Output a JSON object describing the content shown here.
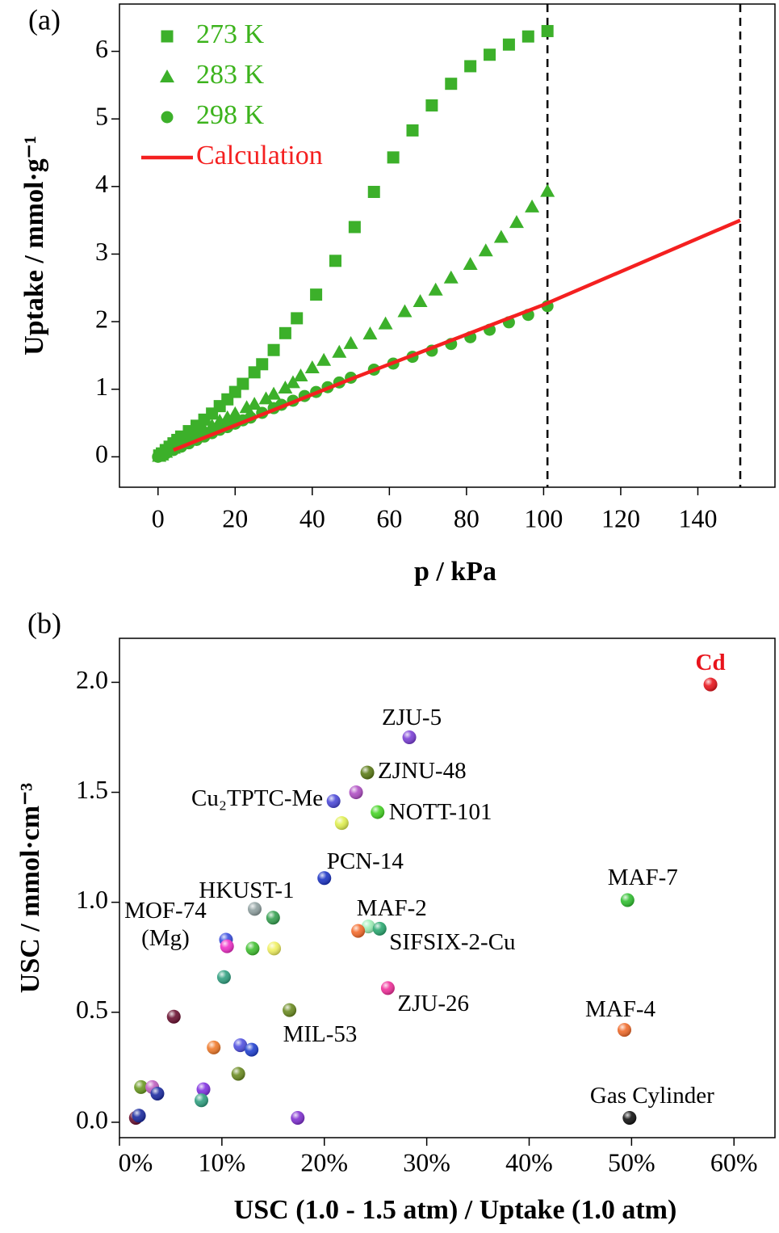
{
  "chart_data": [
    {
      "type": "scatter",
      "panel_label": "(a)",
      "x_label": "p / kPa",
      "y_label": "Uptake / mmol·g⁻¹",
      "xlim": [
        -10,
        160
      ],
      "xticks": [
        0,
        20,
        40,
        60,
        80,
        100,
        120,
        140
      ],
      "ylim": [
        -0.45,
        6.7
      ],
      "yticks": [
        0,
        1,
        2,
        3,
        4,
        5,
        6
      ],
      "vlines": [
        101,
        151
      ],
      "legend": "top-left",
      "series": [
        {
          "name": "273 K",
          "style": "square",
          "color": "#3cb02a",
          "label_color": "#3cb31c",
          "x": [
            0.3,
            1,
            2,
            3,
            4,
            5,
            6,
            8,
            10,
            12,
            14,
            16,
            18,
            20,
            22,
            25,
            27,
            30,
            33,
            36,
            41,
            46,
            51,
            56,
            61,
            66,
            71,
            76,
            81,
            86,
            91,
            96,
            101
          ],
          "values": [
            0.02,
            0.05,
            0.1,
            0.15,
            0.2,
            0.25,
            0.3,
            0.38,
            0.46,
            0.55,
            0.64,
            0.75,
            0.85,
            0.96,
            1.08,
            1.25,
            1.37,
            1.58,
            1.83,
            2.05,
            2.4,
            2.9,
            3.4,
            3.92,
            4.43,
            4.83,
            5.2,
            5.52,
            5.78,
            5.95,
            6.1,
            6.22,
            6.3
          ]
        },
        {
          "name": "283 K",
          "style": "triangle",
          "color": "#3cb02a",
          "label_color": "#3cb31c",
          "x": [
            0.3,
            1,
            2,
            4,
            6,
            8,
            10,
            12,
            14,
            16,
            18,
            20,
            23,
            25,
            28,
            30,
            33,
            35,
            37,
            40,
            43,
            47,
            50,
            55,
            59,
            64,
            68,
            72,
            76,
            81,
            85,
            89,
            93,
            97,
            101
          ],
          "values": [
            0.01,
            0.03,
            0.07,
            0.13,
            0.2,
            0.27,
            0.34,
            0.4,
            0.46,
            0.53,
            0.58,
            0.64,
            0.73,
            0.78,
            0.86,
            0.93,
            1.02,
            1.1,
            1.2,
            1.32,
            1.43,
            1.55,
            1.68,
            1.82,
            1.97,
            2.15,
            2.3,
            2.47,
            2.65,
            2.85,
            3.05,
            3.25,
            3.47,
            3.7,
            3.93
          ]
        },
        {
          "name": "298 K",
          "style": "circle",
          "color": "#3cb02a",
          "label_color": "#3cb31c",
          "x": [
            0,
            1,
            2,
            4,
            6,
            8,
            10,
            12,
            14,
            16,
            18,
            20,
            22,
            24,
            27,
            30,
            32,
            35,
            38,
            41,
            44,
            47,
            50,
            56,
            61,
            66,
            71,
            76,
            81,
            86,
            91,
            96,
            101
          ],
          "values": [
            0,
            0.02,
            0.05,
            0.1,
            0.15,
            0.2,
            0.25,
            0.3,
            0.35,
            0.4,
            0.44,
            0.49,
            0.54,
            0.58,
            0.65,
            0.72,
            0.77,
            0.83,
            0.9,
            0.96,
            1.03,
            1.1,
            1.17,
            1.29,
            1.38,
            1.48,
            1.57,
            1.67,
            1.77,
            1.88,
            1.99,
            2.1,
            2.23
          ]
        },
        {
          "name": "Calculation",
          "style": "line",
          "color": "#f42020",
          "label_color": "#f42020",
          "x": [
            4,
            50,
            100,
            151
          ],
          "values": [
            0.1,
            1.15,
            2.25,
            3.5
          ]
        }
      ]
    },
    {
      "type": "scatter",
      "panel_label": "(b)",
      "x_label": "USC (1.0 - 1.5 atm) / Uptake (1.0 atm)",
      "y_label": "USC / mmol·cm⁻³",
      "xlim": [
        0,
        64
      ],
      "xticks": [
        {
          "value": 0,
          "label": "0%"
        },
        {
          "value": 10,
          "label": "10%"
        },
        {
          "value": 20,
          "label": "20%"
        },
        {
          "value": 30,
          "label": "30%"
        },
        {
          "value": 40,
          "label": "40%"
        },
        {
          "value": 50,
          "label": "50%"
        },
        {
          "value": 60,
          "label": "60%"
        }
      ],
      "ylim": [
        -0.07,
        2.2
      ],
      "yticks": [
        {
          "value": 0,
          "label": "0.0"
        },
        0.5,
        {
          "value": 1,
          "label": "1.0"
        },
        1.5,
        {
          "value": 2,
          "label": "2.0"
        }
      ],
      "series": [
        {
          "x": [
            57.7,
            28.3,
            24.2,
            23.1,
            20.9,
            25.2,
            21.7,
            20.0,
            13.2,
            15.0,
            24.3,
            23.3,
            25.4,
            10.4,
            10.5,
            13.0,
            15.1,
            10.2,
            26.2,
            16.6,
            5.3,
            9.2,
            11.8,
            12.9,
            11.6,
            2.1,
            3.2,
            3.7,
            8.2,
            8.0,
            1.6,
            1.9,
            17.4,
            49.6,
            49.3,
            49.8
          ],
          "values": [
            1.99,
            1.75,
            1.59,
            1.5,
            1.46,
            1.41,
            1.36,
            1.11,
            0.97,
            0.93,
            0.89,
            0.87,
            0.88,
            0.83,
            0.8,
            0.79,
            0.79,
            0.66,
            0.61,
            0.51,
            0.48,
            0.34,
            0.35,
            0.33,
            0.22,
            0.16,
            0.16,
            0.13,
            0.15,
            0.1,
            0.02,
            0.03,
            0.02,
            1.01,
            0.42,
            0.02
          ],
          "colors": [
            "#e8141c",
            "#7b3fd6",
            "#5a7a14",
            "#b04fc4",
            "#4b48d8",
            "#45d424",
            "#e0f050",
            "#1c34c4",
            "#8fa0a0",
            "#35a050",
            "#9ef0b8",
            "#f46a2a",
            "#2aa870",
            "#3a4ee0",
            "#f030c8",
            "#40c030",
            "#f0f060",
            "#30a080",
            "#f0309a",
            "#6a8a20",
            "#6a1030",
            "#f07a2a",
            "#5050e0",
            "#2040d0",
            "#6a8a20",
            "#6a9a20",
            "#c060c0",
            "#1a2aa0",
            "#8030e0",
            "#30a080",
            "#6a1030",
            "#1a2aa0",
            "#8030d0",
            "#30c030",
            "#f06a2a",
            "#111111"
          ],
          "labels": [
            "Cd",
            "ZJU-5",
            "ZJNU-48",
            null,
            "Cu₂TPTC-Me",
            "NOTT-101",
            null,
            "PCN-14",
            "HKUST-1",
            null,
            "MAF-2",
            null,
            "SIFSIX-2-Cu",
            "MOF-74\n(Mg)",
            null,
            null,
            null,
            null,
            "ZJU-26",
            "MIL-53",
            null,
            null,
            null,
            null,
            null,
            null,
            null,
            null,
            null,
            null,
            null,
            null,
            null,
            "MAF-7",
            "MAF-4",
            "Gas Cylinder"
          ]
        }
      ]
    }
  ]
}
